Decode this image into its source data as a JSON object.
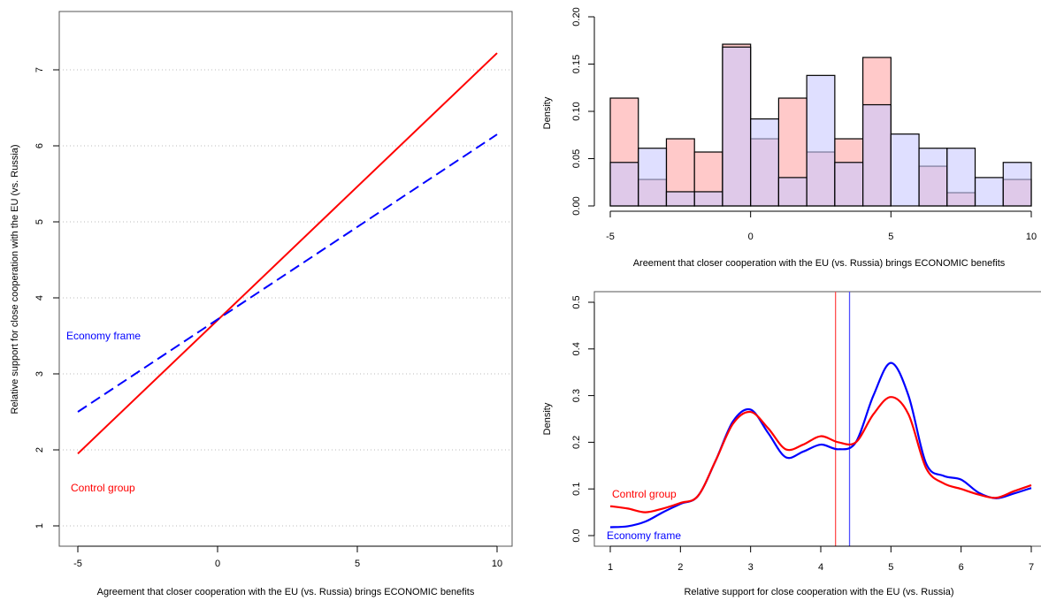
{
  "chart_data": [
    {
      "type": "line",
      "xlabel": "Agreement that closer cooperation with the EU (vs. Russia) brings ECONOMIC benefits",
      "ylabel": "Relative support for close cooperation with the EU (vs. Russia)",
      "xlim": [
        -6,
        11
      ],
      "ylim": [
        0.75,
        7.8
      ],
      "x_ticks": [
        "-5",
        "0",
        "5",
        "10"
      ],
      "y_ticks": [
        "1",
        "2",
        "3",
        "4",
        "5",
        "6",
        "7"
      ],
      "grid": "horizontal dotted",
      "series": [
        {
          "name": "Control group",
          "color": "#ff0000",
          "style": "solid",
          "x": [
            -5,
            10
          ],
          "y": [
            1.95,
            7.22
          ]
        },
        {
          "name": "Economy frame",
          "color": "#0000ff",
          "style": "dashed",
          "x": [
            -5,
            10
          ],
          "y": [
            2.5,
            6.15
          ]
        }
      ],
      "annotations": [
        {
          "text": "Economy frame",
          "color": "#0000ff",
          "x": -5.5,
          "y": 3.5
        },
        {
          "text": "Control group",
          "color": "#ff0000",
          "x": -5.3,
          "y": 1.5
        }
      ]
    },
    {
      "type": "bar",
      "xlabel": "Areement that closer cooperation with the EU (vs. Russia) brings ECONOMIC benefits",
      "ylabel": "Density",
      "xlim": [
        -5,
        10
      ],
      "ylim": [
        0,
        0.2
      ],
      "x_ticks": [
        "-5",
        "0",
        "5",
        "10"
      ],
      "y_ticks": [
        "0.00",
        "0.05",
        "0.10",
        "0.15",
        "0.20"
      ],
      "bin_edges": [
        -5,
        -4,
        -3,
        -2,
        -1,
        0,
        1,
        2,
        3,
        4,
        5,
        6,
        7,
        8,
        9,
        10
      ],
      "series": [
        {
          "name": "Control group",
          "color": "#ffc9c9",
          "values": [
            0.114,
            0.028,
            0.071,
            0.057,
            0.171,
            0.071,
            0.114,
            0.057,
            0.071,
            0.157,
            0.0,
            0.042,
            0.014,
            0.0,
            0.028
          ]
        },
        {
          "name": "Economy frame",
          "color": "#c9c9ff",
          "values": [
            0.046,
            0.061,
            0.015,
            0.015,
            0.168,
            0.092,
            0.03,
            0.138,
            0.046,
            0.107,
            0.076,
            0.061,
            0.061,
            0.03,
            0.046
          ]
        }
      ]
    },
    {
      "type": "line",
      "xlabel": "Relative support for close cooperation with the EU (vs. Russia)",
      "ylabel": "Density",
      "xlim": [
        0.7,
        7.15
      ],
      "ylim": [
        -0.02,
        0.52
      ],
      "x_ticks": [
        "1",
        "2",
        "3",
        "4",
        "5",
        "6",
        "7"
      ],
      "y_ticks": [
        "0.0",
        "0.1",
        "0.2",
        "0.3",
        "0.4",
        "0.5"
      ],
      "series": [
        {
          "name": "Control group",
          "color": "#ff0000",
          "x": [
            1,
            1.25,
            1.5,
            1.75,
            2,
            2.25,
            2.5,
            2.75,
            3,
            3.25,
            3.5,
            3.75,
            4,
            4.25,
            4.5,
            4.75,
            5,
            5.25,
            5.5,
            5.75,
            6,
            6.25,
            6.5,
            6.75,
            7
          ],
          "y": [
            0.063,
            0.058,
            0.05,
            0.058,
            0.07,
            0.085,
            0.16,
            0.24,
            0.265,
            0.23,
            0.185,
            0.195,
            0.213,
            0.2,
            0.2,
            0.26,
            0.297,
            0.26,
            0.145,
            0.112,
            0.1,
            0.088,
            0.081,
            0.095,
            0.108
          ]
        },
        {
          "name": "Economy frame",
          "color": "#0000ff",
          "x": [
            1,
            1.25,
            1.5,
            1.75,
            2,
            2.25,
            2.5,
            2.75,
            3,
            3.25,
            3.5,
            3.75,
            4,
            4.25,
            4.5,
            4.75,
            5,
            5.25,
            5.5,
            5.75,
            6,
            6.25,
            6.5,
            6.75,
            7
          ],
          "y": [
            0.018,
            0.02,
            0.03,
            0.05,
            0.068,
            0.085,
            0.16,
            0.245,
            0.27,
            0.22,
            0.168,
            0.18,
            0.195,
            0.185,
            0.2,
            0.3,
            0.37,
            0.3,
            0.155,
            0.128,
            0.12,
            0.092,
            0.08,
            0.09,
            0.102
          ]
        }
      ],
      "vlines": [
        {
          "name": "Control group",
          "color": "#ff5050",
          "x": 4.21
        },
        {
          "name": "Economy frame",
          "color": "#5050ff",
          "x": 4.41
        }
      ],
      "annotations": [
        {
          "text": "Control group",
          "color": "#ff0000",
          "x": 1.02,
          "y": 0.085
        },
        {
          "text": "Economy frame",
          "color": "#0000ff",
          "x": 0.97,
          "y": 0.0
        }
      ]
    }
  ]
}
